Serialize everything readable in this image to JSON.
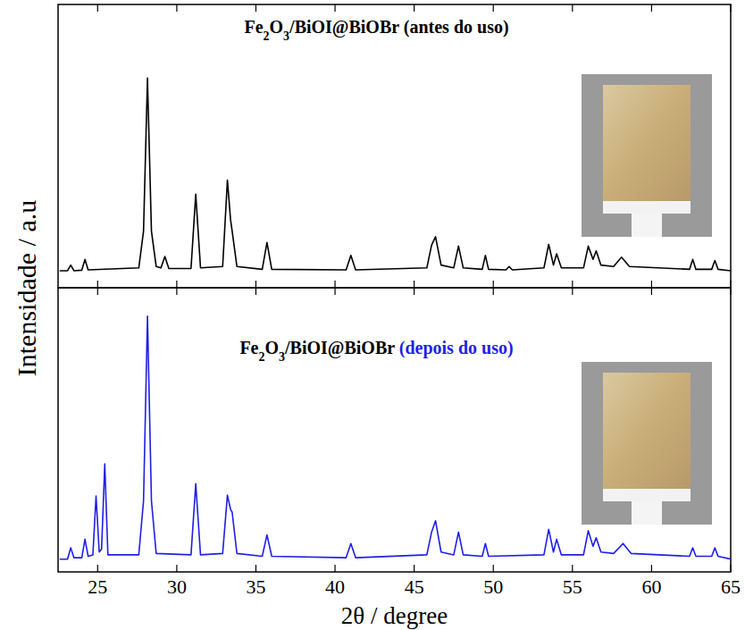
{
  "chart_data": [
    {
      "type": "line",
      "title": "Fe2O3/BiOI@BiOBr (antes do uso)",
      "ylabel": "Intensidade / a.u",
      "x": [
        22.6,
        23.1,
        23.3,
        23.5,
        24.0,
        24.2,
        24.4,
        27.6,
        27.9,
        28.15,
        28.4,
        28.7,
        29.0,
        29.25,
        29.5,
        30.9,
        31.2,
        31.5,
        32.9,
        33.2,
        33.4,
        33.5,
        33.8,
        35.4,
        35.7,
        36.0,
        40.7,
        41.0,
        41.3,
        45.8,
        46.1,
        46.35,
        46.7,
        47.5,
        47.8,
        48.1,
        49.3,
        49.5,
        49.7,
        50.8,
        51.0,
        51.2,
        53.2,
        53.5,
        53.8,
        54.0,
        54.3,
        55.7,
        56.0,
        56.3,
        56.5,
        56.8,
        57.6,
        58.1,
        58.6,
        62.4,
        62.6,
        62.8,
        63.8,
        64.0,
        64.2,
        65.0
      ],
      "series": [
        {
          "name": "Fe2O3/BiOI@BiOBr (antes do uso)",
          "color": "#000000",
          "values": [
            6,
            6,
            8,
            6,
            6.2,
            10,
            6.3,
            7,
            20,
            74,
            20,
            7.5,
            7,
            11,
            6.8,
            6.8,
            33,
            7,
            7.5,
            38,
            24,
            20,
            7.5,
            6.5,
            16,
            6.5,
            6.3,
            11.4,
            6.3,
            7,
            15,
            18,
            8,
            7,
            14.7,
            7,
            6.5,
            11.4,
            6.5,
            6.3,
            7.5,
            6.3,
            7,
            15.3,
            8,
            12,
            7,
            7,
            14.7,
            10,
            13,
            8,
            7.5,
            10.8,
            7.5,
            6.5,
            10,
            6.5,
            6.5,
            9.6,
            6.5,
            6
          ]
        }
      ],
      "xlim": [
        22.5,
        65
      ],
      "ylim": [
        0,
        100
      ],
      "xticks": [
        25,
        30,
        35,
        40,
        45,
        50,
        55,
        60,
        65
      ],
      "tick_labels": false
    },
    {
      "type": "line",
      "title": "Fe2O3/BiOI@BiOBr (depois do uso)",
      "xlabel": "2θ / degree",
      "x": [
        22.6,
        23.1,
        23.3,
        23.5,
        24.0,
        24.2,
        24.4,
        24.7,
        24.9,
        25.1,
        25.25,
        25.45,
        25.65,
        27.6,
        27.9,
        28.15,
        28.4,
        28.7,
        30.9,
        31.2,
        31.5,
        32.9,
        33.2,
        33.4,
        33.5,
        33.8,
        35.4,
        35.7,
        36.0,
        40.7,
        41.0,
        41.3,
        45.8,
        46.1,
        46.35,
        46.7,
        47.5,
        47.8,
        48.1,
        49.3,
        49.5,
        49.7,
        53.2,
        53.5,
        53.8,
        54.0,
        54.3,
        55.7,
        56.0,
        56.3,
        56.5,
        56.8,
        57.6,
        58.2,
        58.7,
        62.4,
        62.6,
        62.8,
        63.8,
        64.0,
        64.2,
        65.0
      ],
      "series": [
        {
          "name": "Fe2O3/BiOI@BiOBr (depois do uso)",
          "color": "#1f1fe6",
          "values": [
            4.5,
            4.5,
            8.5,
            5,
            5,
            11.5,
            5.5,
            6,
            26.7,
            7,
            8,
            38,
            6,
            6,
            25,
            90,
            25,
            6.5,
            6,
            31,
            6,
            6.5,
            27,
            22,
            21,
            6.5,
            5.5,
            13,
            5.5,
            5,
            10,
            5,
            6,
            14,
            18,
            7,
            6,
            14,
            6,
            5.5,
            10,
            5.5,
            6,
            15,
            7,
            11.5,
            6,
            6,
            14.5,
            9,
            12,
            7,
            6.5,
            10,
            6.5,
            5.5,
            8.5,
            5.5,
            5.5,
            8.5,
            5.5,
            4.5
          ]
        }
      ],
      "xlim": [
        22.5,
        65
      ],
      "ylim": [
        0,
        100
      ],
      "xticks": [
        25,
        30,
        35,
        40,
        45,
        50,
        55,
        60,
        65
      ],
      "tick_labels": "x"
    }
  ]
}
